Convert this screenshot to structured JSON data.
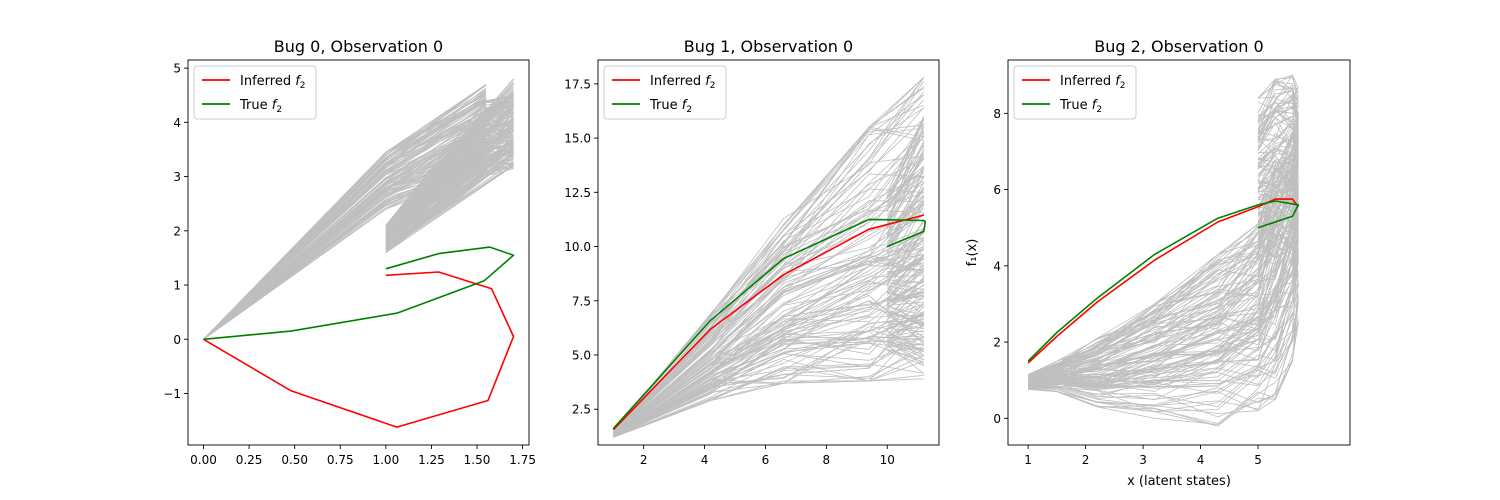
{
  "chart_data": [
    {
      "type": "line",
      "title": "Bug 0, Observation 0",
      "xlabel": "",
      "ylabel": "",
      "xlim": [
        -0.085,
        1.785
      ],
      "ylim": [
        -1.95,
        5.15
      ],
      "xticks": [
        0.0,
        0.25,
        0.5,
        0.75,
        1.0,
        1.25,
        1.5,
        1.75
      ],
      "xtick_labels": [
        "0.00",
        "0.25",
        "0.50",
        "0.75",
        "1.00",
        "1.25",
        "1.50",
        "1.75"
      ],
      "yticks": [
        -1,
        0,
        1,
        2,
        3,
        4,
        5
      ],
      "ytick_labels": [
        "−1",
        "0",
        "1",
        "2",
        "3",
        "4",
        "5"
      ],
      "legend": {
        "position": "upper left",
        "entries": [
          {
            "label": "Inferred",
            "sub": "2",
            "color": "#ff0000"
          },
          {
            "label": "True",
            "sub": "2",
            "color": "#008000"
          }
        ]
      },
      "series": [
        {
          "name": "Inferred f2",
          "color": "#ff0000",
          "x": [
            1.0,
            1.29,
            1.58,
            1.7,
            1.56,
            1.06,
            0.48,
            0.0
          ],
          "y": [
            1.18,
            1.24,
            0.93,
            0.05,
            -1.13,
            -1.62,
            -0.95,
            0.0
          ]
        },
        {
          "name": "True f2",
          "color": "#008000",
          "x": [
            1.0,
            1.29,
            1.57,
            1.7,
            1.54,
            1.06,
            0.48,
            0.0
          ],
          "y": [
            1.3,
            1.58,
            1.7,
            1.55,
            1.08,
            0.48,
            0.15,
            0.0
          ]
        }
      ],
      "samples": {
        "count": 120,
        "color": "#bfbfbf",
        "x": [
          0.0,
          1.0,
          1.55,
          1.7,
          1.0,
          1.55,
          1.7
        ],
        "y_min": [
          0.0,
          2.4,
          3.1,
          3.2,
          1.6,
          3.0,
          3.1
        ],
        "y_max": [
          0.0,
          3.45,
          4.7,
          4.8,
          2.1,
          4.4,
          4.5
        ],
        "breaks": [
          3
        ]
      }
    },
    {
      "type": "line",
      "title": "Bug 1, Observation 0",
      "xlabel": "",
      "ylabel": "",
      "xlim": [
        0.5,
        11.7
      ],
      "ylim": [
        0.85,
        18.6
      ],
      "xticks": [
        2,
        4,
        6,
        8,
        10
      ],
      "xtick_labels": [
        "2",
        "4",
        "6",
        "8",
        "10"
      ],
      "yticks": [
        2.5,
        5.0,
        7.5,
        10.0,
        12.5,
        15.0,
        17.5
      ],
      "ytick_labels": [
        "2.5",
        "5.0",
        "7.5",
        "10.0",
        "12.5",
        "15.0",
        "17.5"
      ],
      "legend": {
        "position": "upper left",
        "entries": [
          {
            "label": "Inferred",
            "sub": "2",
            "color": "#ff0000"
          },
          {
            "label": "True",
            "sub": "2",
            "color": "#008000"
          }
        ]
      },
      "series": [
        {
          "name": "Inferred f2",
          "color": "#ff0000",
          "x": [
            1.0,
            4.2,
            6.6,
            9.4,
            11.2
          ],
          "y": [
            1.55,
            6.2,
            8.7,
            10.8,
            11.45
          ]
        },
        {
          "name": "True f2",
          "color": "#008000",
          "x": [
            1.0,
            4.2,
            6.6,
            9.4,
            11.2,
            11.25,
            11.2,
            10.0
          ],
          "y": [
            1.6,
            6.6,
            9.45,
            11.25,
            11.2,
            11.15,
            10.7,
            10.0
          ]
        }
      ],
      "samples": {
        "count": 120,
        "color": "#bfbfbf",
        "x": [
          1.0,
          4.2,
          6.6,
          9.4,
          11.2,
          10.0,
          11.2
        ],
        "y_min": [
          1.2,
          2.9,
          3.7,
          3.8,
          3.9,
          5.2,
          4.5
        ],
        "y_max": [
          1.45,
          6.9,
          11.3,
          15.5,
          17.8,
          12.5,
          16.0
        ],
        "breaks": [
          5
        ]
      }
    },
    {
      "type": "line",
      "title": "Bug 2, Observation 0",
      "xlabel": "x (latent states)",
      "ylabel": "f₁(x)",
      "xlim": [
        0.65,
        6.6
      ],
      "ylim": [
        -0.7,
        9.4
      ],
      "xticks": [
        1,
        2,
        3,
        4,
        5
      ],
      "xtick_labels": [
        "1",
        "2",
        "3",
        "4",
        "5"
      ],
      "yticks": [
        0,
        2,
        4,
        6,
        8
      ],
      "ytick_labels": [
        "0",
        "2",
        "4",
        "6",
        "8"
      ],
      "legend": {
        "position": "upper left",
        "entries": [
          {
            "label": "Inferred",
            "sub": "2",
            "color": "#ff0000"
          },
          {
            "label": "True",
            "sub": "2",
            "color": "#008000"
          }
        ]
      },
      "series": [
        {
          "name": "Inferred f2",
          "color": "#ff0000",
          "x": [
            1.0,
            1.5,
            2.2,
            3.2,
            4.3,
            5.0,
            5.3,
            5.6,
            5.7
          ],
          "y": [
            1.45,
            2.15,
            3.05,
            4.15,
            5.15,
            5.55,
            5.75,
            5.75,
            5.55
          ]
        },
        {
          "name": "True f2",
          "color": "#008000",
          "x": [
            1.0,
            1.5,
            2.2,
            3.2,
            4.3,
            5.0,
            5.3,
            5.7,
            5.6,
            5.0
          ],
          "y": [
            1.5,
            2.25,
            3.15,
            4.3,
            5.25,
            5.6,
            5.7,
            5.6,
            5.3,
            5.0
          ]
        }
      ],
      "samples": {
        "count": 120,
        "color": "#bfbfbf",
        "x": [
          1.0,
          1.5,
          2.2,
          3.2,
          4.3,
          5.0,
          5.3,
          5.6,
          5.7,
          5.0,
          5.3,
          5.6,
          5.7
        ],
        "y_min": [
          0.75,
          0.7,
          0.3,
          0.0,
          -0.2,
          0.2,
          0.5,
          1.5,
          2.5,
          4.0,
          4.2,
          4.0,
          3.5
        ],
        "y_max": [
          1.15,
          1.5,
          2.1,
          3.0,
          4.3,
          5.1,
          6.5,
          7.5,
          8.0,
          8.4,
          8.9,
          9.0,
          8.7
        ],
        "breaks": [
          9
        ]
      }
    }
  ]
}
